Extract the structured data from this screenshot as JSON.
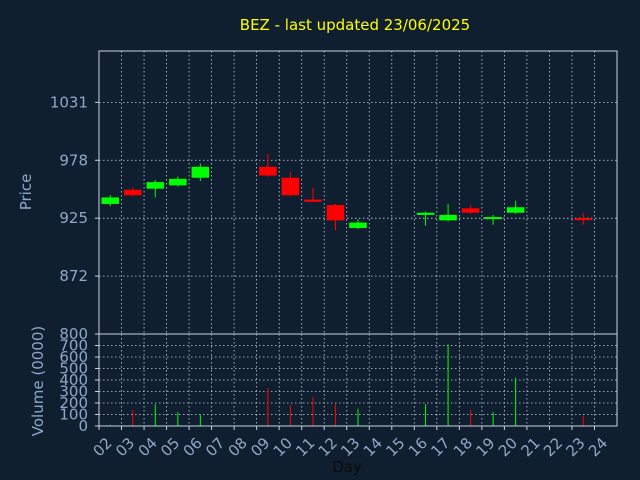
{
  "chart_data": {
    "type": "candlestick",
    "title": "BEZ - last updated 23/06/2025",
    "xlabel": "Day",
    "price_panel": {
      "ylabel": "Price",
      "ylim": [
        819,
        1078
      ],
      "yticks": [
        872,
        925,
        978,
        1031
      ]
    },
    "volume_panel": {
      "ylabel": "Volume (0000)",
      "ylim": [
        0,
        800
      ],
      "yticks": [
        0,
        100,
        200,
        300,
        400,
        500,
        600,
        700,
        800
      ]
    },
    "x_ticks": [
      "02",
      "03",
      "04",
      "05",
      "06",
      "07",
      "08",
      "09",
      "10",
      "11",
      "12",
      "13",
      "14",
      "15",
      "16",
      "17",
      "18",
      "19",
      "20",
      "21",
      "22",
      "23",
      "24"
    ],
    "candles": [
      {
        "day": 2,
        "open": 938,
        "high": 946,
        "low": 936,
        "close": 944,
        "volume": 10
      },
      {
        "day": 3,
        "open": 951,
        "high": 953,
        "low": 945,
        "close": 946,
        "volume": 140
      },
      {
        "day": 4,
        "open": 952,
        "high": 960,
        "low": 944,
        "close": 958,
        "volume": 190
      },
      {
        "day": 5,
        "open": 955,
        "high": 963,
        "low": 954,
        "close": 961,
        "volume": 120
      },
      {
        "day": 6,
        "open": 962,
        "high": 975,
        "low": 959,
        "close": 972,
        "volume": 100
      },
      {
        "day": 9,
        "open": 972,
        "high": 984,
        "low": 963,
        "close": 964,
        "volume": 330
      },
      {
        "day": 10,
        "open": 962,
        "high": 967,
        "low": 945,
        "close": 946,
        "volume": 180
      },
      {
        "day": 11,
        "open": 942,
        "high": 953,
        "low": 940,
        "close": 940,
        "volume": 250
      },
      {
        "day": 12,
        "open": 937,
        "high": 938,
        "low": 914,
        "close": 923,
        "volume": 190
      },
      {
        "day": 13,
        "open": 916,
        "high": 924,
        "low": 915,
        "close": 921,
        "volume": 150
      },
      {
        "day": 16,
        "open": 928,
        "high": 931,
        "low": 918,
        "close": 930,
        "volume": 190
      },
      {
        "day": 17,
        "open": 923,
        "high": 938,
        "low": 922,
        "close": 928,
        "volume": 710
      },
      {
        "day": 18,
        "open": 934,
        "high": 937,
        "low": 929,
        "close": 930,
        "volume": 140
      },
      {
        "day": 19,
        "open": 925,
        "high": 928,
        "low": 919,
        "close": 926,
        "volume": 120
      },
      {
        "day": 20,
        "open": 930,
        "high": 941,
        "low": 929,
        "close": 935,
        "volume": 420
      },
      {
        "day": 23,
        "open": 925,
        "high": 930,
        "low": 919,
        "close": 924,
        "volume": 90
      }
    ],
    "colors": {
      "up": "#00ff00",
      "down": "#ff0000",
      "background": "#0f1f30",
      "title": "#ffff00",
      "axis_text": "#8fa8c8",
      "grid": "#c8d0e0"
    }
  }
}
